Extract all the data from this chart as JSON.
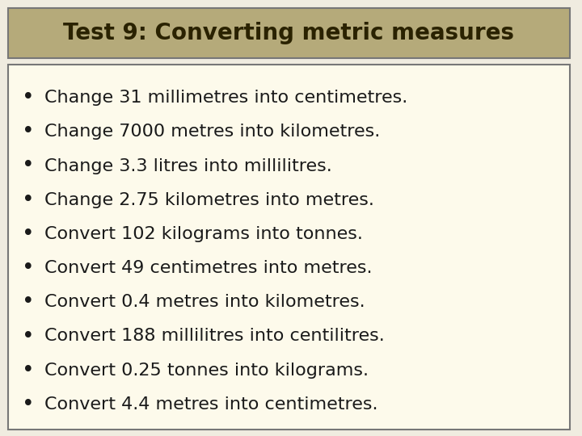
{
  "title": "Test 9: Converting metric measures",
  "title_bg_color": "#b5aa7a",
  "title_text_color": "#2a2200",
  "body_bg_color": "#fdfaeb",
  "outer_bg_color": "#f0ece0",
  "border_color": "#777777",
  "text_color": "#1a1a1a",
  "items": [
    "Change 31 millimetres into centimetres.",
    "Change 7000 metres into kilometres.",
    "Change 3.3 litres into millilitres.",
    "Change 2.75 kilometres into metres.",
    "Convert 102 kilograms into tonnes.",
    "Convert 49 centimetres into metres.",
    "Convert 0.4 metres into kilometres.",
    "Convert 188 millilitres into centilitres.",
    "Convert 0.25 tonnes into kilograms.",
    "Convert 4.4 metres into centimetres."
  ],
  "title_fontsize": 20,
  "item_fontsize": 16,
  "figsize": [
    7.2,
    5.4
  ],
  "dpi": 100
}
